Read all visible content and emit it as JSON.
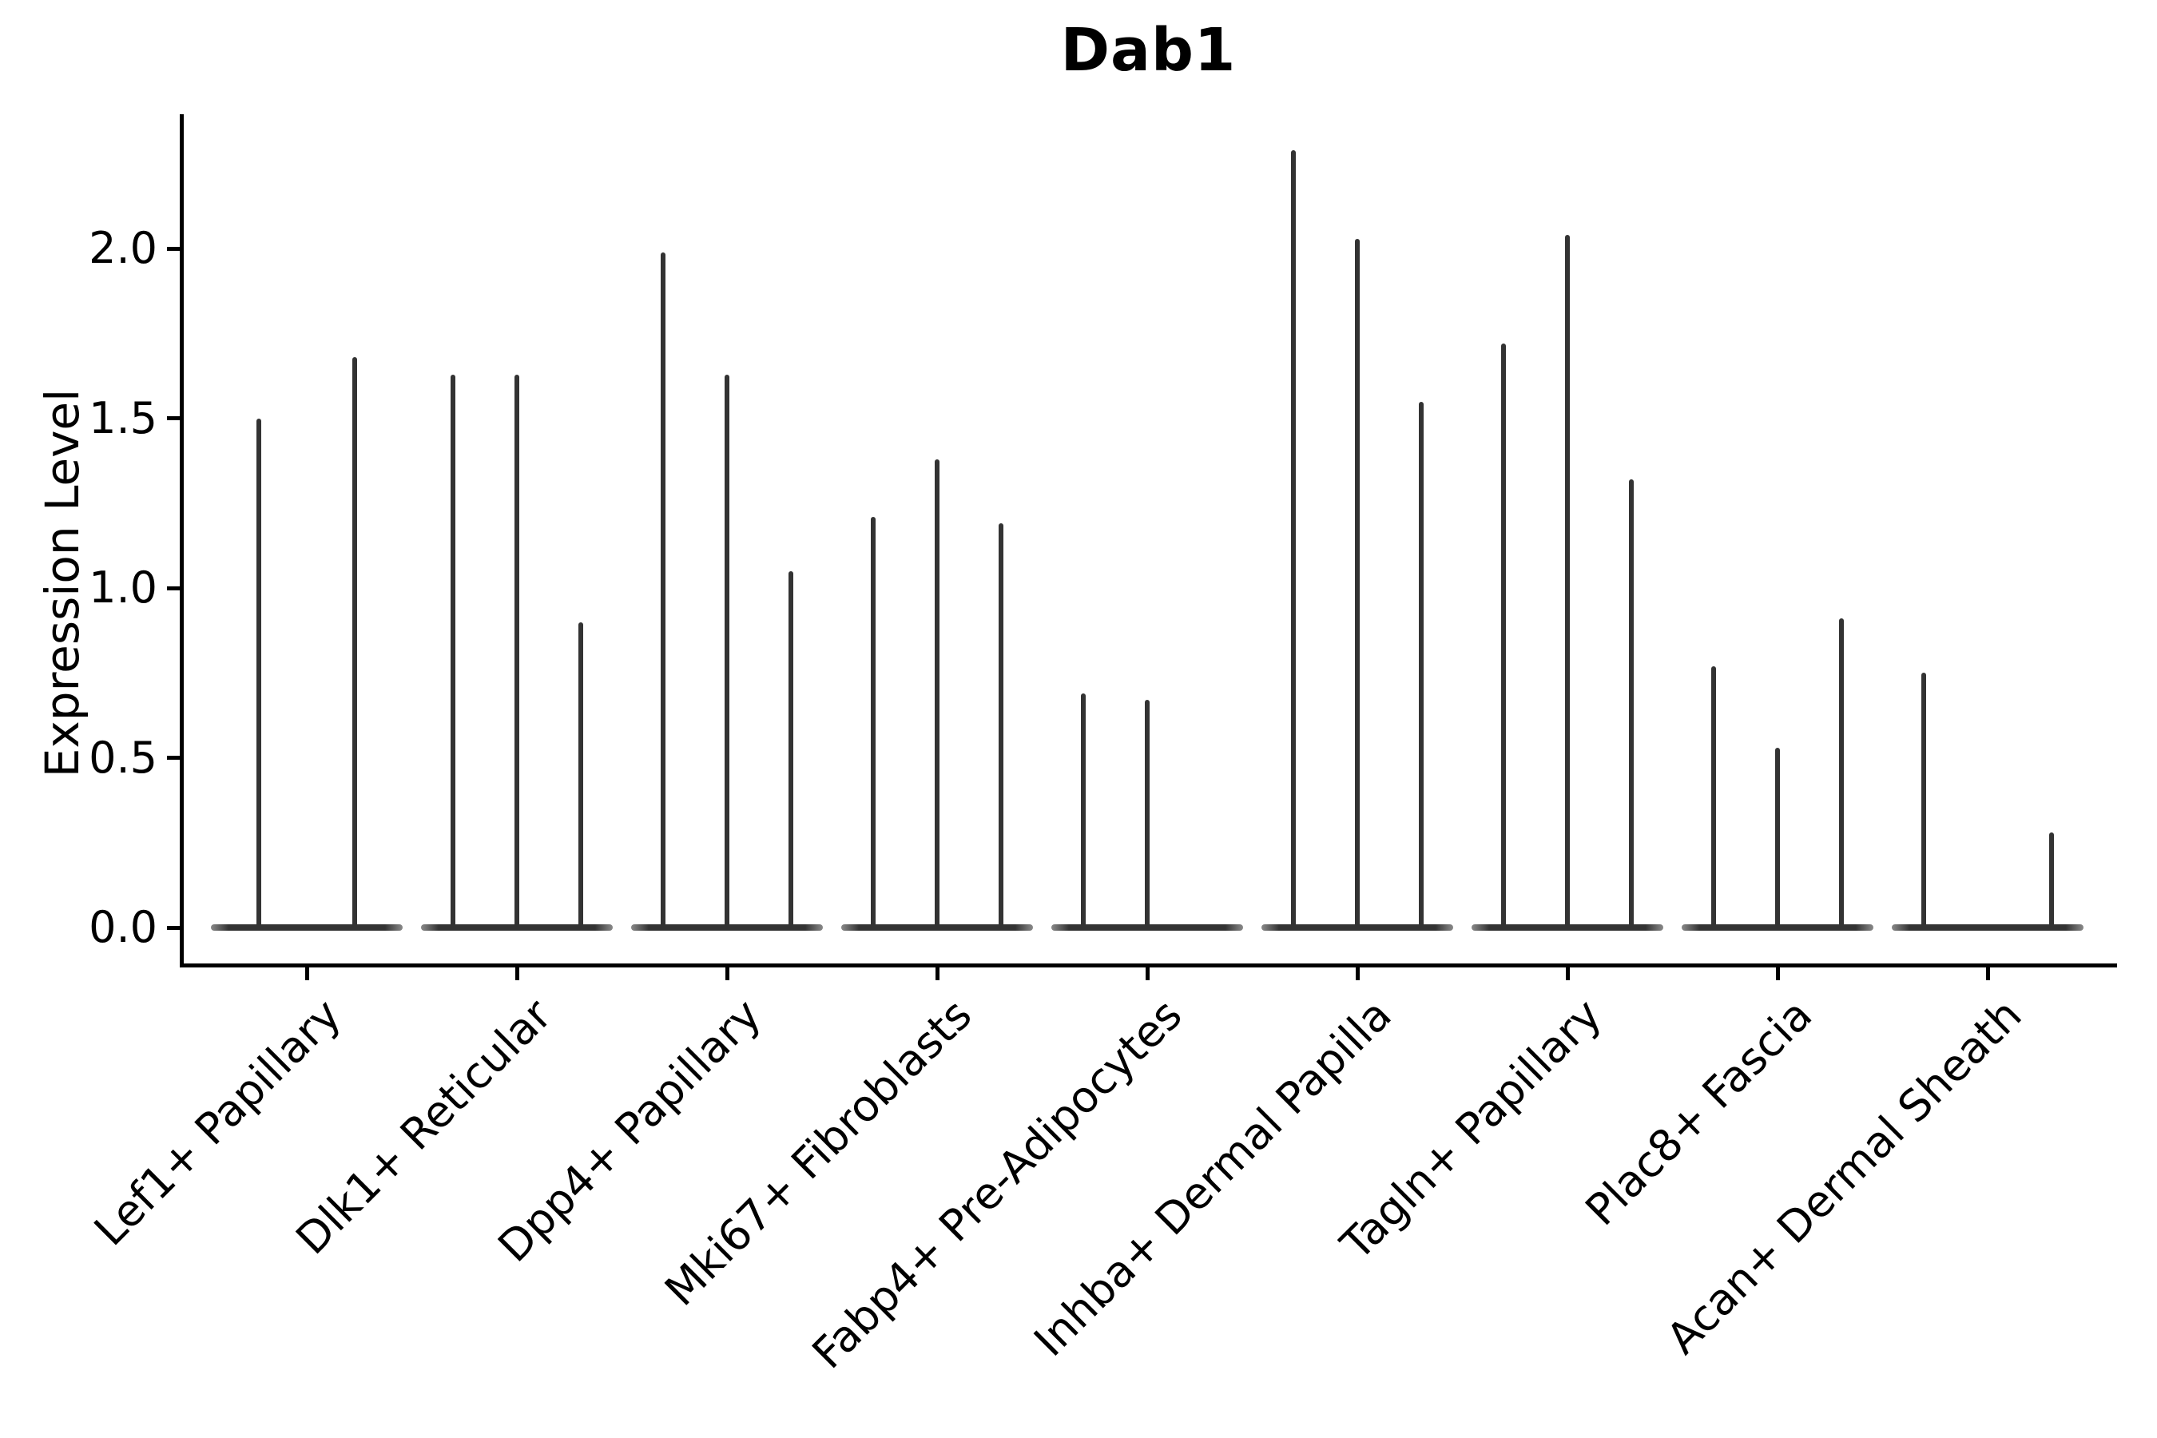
{
  "title": "Dab1",
  "y_axis": {
    "label": "Expression Level",
    "tick_labels": [
      "0.0",
      "0.5",
      "1.0",
      "1.5",
      "2.0"
    ]
  },
  "x_axis": {
    "categories": [
      "Lef1+ Papillary",
      "Dlk1+ Reticular",
      "Dpp4+ Papillary",
      "Mki67+ Fibroblasts",
      "Fabp4+ Pre-Adipocytes",
      "Inhba+ Dermal Papilla",
      "Tagln+ Papillary",
      "Plac8+ Fascia",
      "Acan+ Dermal Sheath"
    ]
  },
  "chart_data": {
    "type": "violin",
    "title": "Dab1",
    "xlabel": "",
    "ylabel": "Expression Level",
    "ylim": [
      -0.11,
      2.4
    ],
    "yticks": [
      0.0,
      0.5,
      1.0,
      1.5,
      2.0
    ],
    "ytick_labels": [
      "0.0",
      "0.5",
      "1.0",
      "1.5",
      "2.0"
    ],
    "grid": false,
    "legend": null,
    "description": "Each cell-type group shows 1-3 degenerate violins: a wide flat base at expression 0 with a thin vertical tail rising to the maximum expression value. A value of 0 means a flat violin with no tail.",
    "categories": [
      "Lef1+ Papillary",
      "Dlk1+ Reticular",
      "Dpp4+ Papillary",
      "Mki67+ Fibroblasts",
      "Fabp4+ Pre-Adipocytes",
      "Inhba+ Dermal Papilla",
      "Tagln+ Papillary",
      "Plac8+ Fascia",
      "Acan+ Dermal Sheath"
    ],
    "groups": [
      {
        "category": "Lef1+ Papillary",
        "violin_max_values": [
          1.5,
          1.68
        ]
      },
      {
        "category": "Dlk1+ Reticular",
        "violin_max_values": [
          1.63,
          1.63,
          0.9
        ]
      },
      {
        "category": "Dpp4+ Papillary",
        "violin_max_values": [
          1.99,
          1.63,
          1.05
        ]
      },
      {
        "category": "Mki67+ Fibroblasts",
        "violin_max_values": [
          1.21,
          1.38,
          1.19
        ]
      },
      {
        "category": "Fabp4+ Pre-Adipocytes",
        "violin_max_values": [
          0.69,
          0.67,
          0.0
        ]
      },
      {
        "category": "Inhba+ Dermal Papilla",
        "violin_max_values": [
          2.29,
          2.03,
          1.55
        ]
      },
      {
        "category": "Tagln+ Papillary",
        "violin_max_values": [
          1.72,
          2.04,
          1.32
        ]
      },
      {
        "category": "Plac8+ Fascia",
        "violin_max_values": [
          0.77,
          0.53,
          0.91
        ]
      },
      {
        "category": "Acan+ Dermal Sheath",
        "violin_max_values": [
          0.75,
          0.0,
          0.28
        ]
      }
    ],
    "violin_color": "#333333",
    "axis_color": "#000000",
    "background": "#ffffff"
  }
}
